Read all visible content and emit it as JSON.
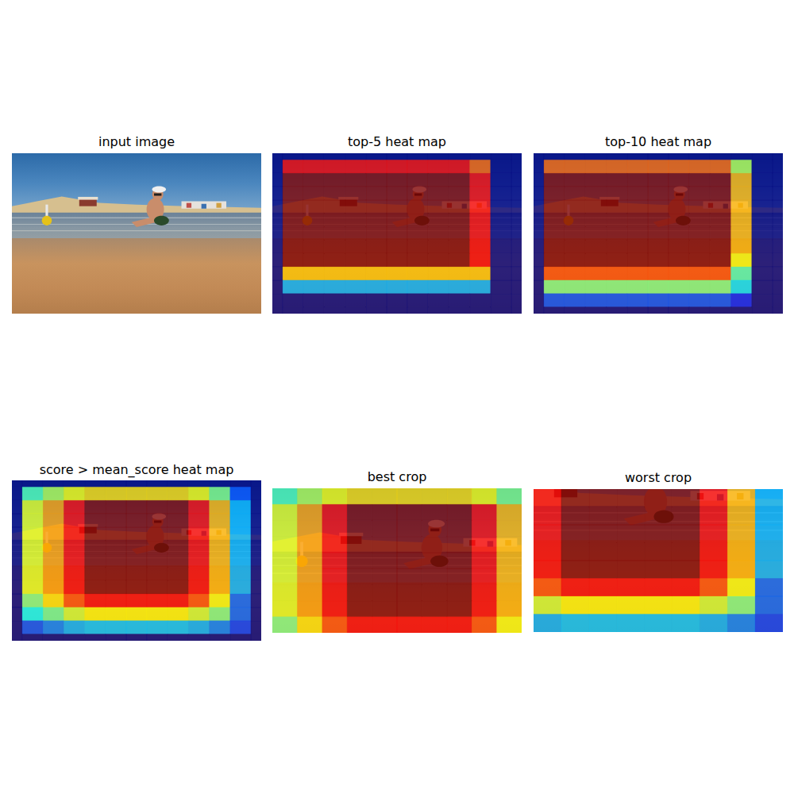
{
  "chart_data": [
    {
      "type": "image",
      "title": "input image",
      "tick_labels": false
    },
    {
      "type": "heatmap",
      "title": "top-5 heat map",
      "tick_labels": false,
      "xlim": [
        0,
        12
      ],
      "ylim": [
        0,
        12
      ],
      "color_range": [
        0,
        1
      ],
      "cells": [
        [
          0,
          0,
          0,
          0,
          0,
          0,
          0,
          0,
          0,
          0,
          0,
          0,
          0
        ],
        [
          0,
          0.88,
          0.88,
          0.88,
          0.88,
          0.88,
          0.88,
          0.88,
          0.88,
          0.88,
          0.78,
          0,
          0
        ],
        [
          0,
          1,
          1,
          1,
          1,
          1,
          1,
          1,
          1,
          1,
          0.88,
          0,
          0
        ],
        [
          0,
          1,
          1,
          1,
          1,
          1,
          1,
          1,
          1,
          1,
          0.88,
          0,
          0
        ],
        [
          0,
          1,
          1,
          1,
          1,
          1,
          1,
          1,
          1,
          1,
          0.88,
          0,
          0
        ],
        [
          0,
          1,
          1,
          1,
          1,
          1,
          1,
          1,
          1,
          1,
          0.88,
          0,
          0
        ],
        [
          0,
          1,
          1,
          1,
          1,
          1,
          1,
          1,
          1,
          1,
          0.88,
          0,
          0
        ],
        [
          0,
          1,
          1,
          1,
          1,
          1,
          1,
          1,
          1,
          1,
          0.88,
          0,
          0
        ],
        [
          0,
          1,
          1,
          1,
          1,
          1,
          1,
          1,
          1,
          1,
          0.88,
          0,
          0
        ],
        [
          0,
          0.68,
          0.68,
          0.68,
          0.68,
          0.68,
          0.68,
          0.68,
          0.68,
          0.68,
          0.68,
          0,
          0
        ],
        [
          0,
          0.3,
          0.3,
          0.3,
          0.3,
          0.3,
          0.3,
          0.3,
          0.3,
          0.3,
          0.3,
          0,
          0
        ],
        [
          0,
          0,
          0,
          0,
          0,
          0,
          0,
          0,
          0,
          0,
          0,
          0,
          0
        ],
        [
          0,
          0,
          0,
          0,
          0,
          0,
          0,
          0,
          0,
          0,
          0,
          0,
          0
        ]
      ]
    },
    {
      "type": "heatmap",
      "title": "top-10 heat map",
      "tick_labels": false,
      "xlim": [
        0,
        12
      ],
      "ylim": [
        0,
        12
      ],
      "color_range": [
        0,
        1
      ],
      "cells": [
        [
          0,
          0,
          0,
          0,
          0,
          0,
          0,
          0,
          0,
          0,
          0,
          0,
          0
        ],
        [
          0,
          0.78,
          0.78,
          0.78,
          0.78,
          0.78,
          0.78,
          0.78,
          0.78,
          0.78,
          0.55,
          0,
          0
        ],
        [
          0,
          1,
          1,
          1,
          1,
          1,
          1,
          1,
          1,
          1,
          0.7,
          0,
          0
        ],
        [
          0,
          1,
          1,
          1,
          1,
          1,
          1,
          1,
          1,
          1,
          0.7,
          0,
          0
        ],
        [
          0,
          1,
          1,
          1,
          1,
          1,
          1,
          1,
          1,
          1,
          0.7,
          0,
          0
        ],
        [
          0,
          1,
          1,
          1,
          1,
          1,
          1,
          1,
          1,
          1,
          0.7,
          0,
          0
        ],
        [
          0,
          1,
          1,
          1,
          1,
          1,
          1,
          1,
          1,
          1,
          0.7,
          0,
          0
        ],
        [
          0,
          1,
          1,
          1,
          1,
          1,
          1,
          1,
          1,
          1,
          0.7,
          0,
          0
        ],
        [
          0,
          1,
          1,
          1,
          1,
          1,
          1,
          1,
          1,
          1,
          0.62,
          0,
          0
        ],
        [
          0,
          0.8,
          0.8,
          0.8,
          0.8,
          0.8,
          0.8,
          0.8,
          0.8,
          0.8,
          0.45,
          0,
          0
        ],
        [
          0,
          0.5,
          0.5,
          0.5,
          0.5,
          0.5,
          0.5,
          0.5,
          0.5,
          0.5,
          0.35,
          0,
          0
        ],
        [
          0,
          0.2,
          0.2,
          0.2,
          0.2,
          0.2,
          0.2,
          0.2,
          0.2,
          0.2,
          0.15,
          0,
          0
        ],
        [
          0,
          0,
          0,
          0,
          0,
          0,
          0,
          0,
          0,
          0,
          0,
          0,
          0
        ]
      ]
    },
    {
      "type": "heatmap",
      "title": "score > mean_score heat map",
      "tick_labels": false,
      "xlim": [
        0,
        12
      ],
      "ylim": [
        0,
        12
      ],
      "color_range": [
        0,
        1
      ],
      "cells": [
        [
          0,
          0,
          0,
          0,
          0,
          0,
          0,
          0,
          0,
          0,
          0,
          0,
          0
        ],
        [
          0,
          0.45,
          0.55,
          0.62,
          0.66,
          0.66,
          0.66,
          0.66,
          0.66,
          0.62,
          0.5,
          0.2,
          0
        ],
        [
          0,
          0.6,
          0.72,
          0.88,
          1,
          1,
          1,
          1,
          1,
          0.88,
          0.7,
          0.3,
          0
        ],
        [
          0,
          0.6,
          0.72,
          0.88,
          1,
          1,
          1,
          1,
          1,
          0.88,
          0.7,
          0.3,
          0
        ],
        [
          0,
          0.6,
          0.72,
          0.88,
          1,
          1,
          1,
          1,
          1,
          0.88,
          0.7,
          0.3,
          0
        ],
        [
          0,
          0.6,
          0.72,
          0.88,
          1,
          1,
          1,
          1,
          1,
          0.88,
          0.7,
          0.3,
          0
        ],
        [
          0,
          0.6,
          0.72,
          0.88,
          1,
          1,
          1,
          1,
          1,
          0.88,
          0.7,
          0.3,
          0
        ],
        [
          0,
          0.6,
          0.72,
          0.88,
          1,
          1,
          1,
          1,
          1,
          0.88,
          0.7,
          0.3,
          0
        ],
        [
          0,
          0.6,
          0.72,
          0.88,
          1,
          1,
          1,
          1,
          1,
          0.88,
          0.7,
          0.3,
          0
        ],
        [
          0,
          0.5,
          0.65,
          0.8,
          0.88,
          0.88,
          0.88,
          0.88,
          0.88,
          0.8,
          0.62,
          0.22,
          0
        ],
        [
          0,
          0.38,
          0.48,
          0.58,
          0.63,
          0.63,
          0.63,
          0.63,
          0.63,
          0.58,
          0.5,
          0.22,
          0
        ],
        [
          0,
          0.2,
          0.25,
          0.3,
          0.32,
          0.32,
          0.32,
          0.32,
          0.32,
          0.3,
          0.25,
          0.18,
          0
        ],
        [
          0,
          0,
          0,
          0,
          0,
          0,
          0,
          0,
          0,
          0,
          0,
          0,
          0
        ]
      ]
    },
    {
      "type": "heatmap",
      "title": "best crop",
      "tick_labels": false,
      "xlim": [
        -0.5,
        9.5
      ],
      "ylim": [
        -0.5,
        8.5
      ],
      "color_range": [
        0,
        1
      ],
      "cells": [
        [
          0.45,
          0.55,
          0.62,
          0.66,
          0.66,
          0.66,
          0.66,
          0.66,
          0.62,
          0.5
        ],
        [
          0.6,
          0.72,
          0.88,
          1,
          1,
          1,
          1,
          1,
          0.88,
          0.7
        ],
        [
          0.6,
          0.72,
          0.88,
          1,
          1,
          1,
          1,
          1,
          0.88,
          0.7
        ],
        [
          0.6,
          0.72,
          0.88,
          1,
          1,
          1,
          1,
          1,
          0.88,
          0.7
        ],
        [
          0.6,
          0.72,
          0.88,
          1,
          1,
          1,
          1,
          1,
          0.88,
          0.7
        ],
        [
          0.6,
          0.72,
          0.88,
          1,
          1,
          1,
          1,
          1,
          0.88,
          0.7
        ],
        [
          0.6,
          0.72,
          0.88,
          1,
          1,
          1,
          1,
          1,
          0.88,
          0.7
        ],
        [
          0.6,
          0.72,
          0.88,
          1,
          1,
          1,
          1,
          1,
          0.88,
          0.7
        ],
        [
          0.5,
          0.65,
          0.8,
          0.88,
          0.88,
          0.88,
          0.88,
          0.88,
          0.8,
          0.62
        ]
      ]
    },
    {
      "type": "heatmap",
      "title": "worst crop",
      "tick_labels": false,
      "xlim": [
        -0.5,
        8.5
      ],
      "ylim": [
        -0.5,
        7.5
      ],
      "color_range": [
        0,
        1
      ],
      "cells": [
        [
          0.88,
          1,
          1,
          1,
          1,
          1,
          0.88,
          0.7,
          0.3
        ],
        [
          0.88,
          1,
          1,
          1,
          1,
          1,
          0.88,
          0.7,
          0.3
        ],
        [
          0.88,
          1,
          1,
          1,
          1,
          1,
          0.88,
          0.7,
          0.3
        ],
        [
          0.88,
          1,
          1,
          1,
          1,
          1,
          0.88,
          0.7,
          0.3
        ],
        [
          0.88,
          1,
          1,
          1,
          1,
          1,
          0.88,
          0.7,
          0.3
        ],
        [
          0.8,
          0.88,
          0.88,
          0.88,
          0.88,
          0.88,
          0.8,
          0.62,
          0.22
        ],
        [
          0.58,
          0.63,
          0.63,
          0.63,
          0.63,
          0.63,
          0.58,
          0.5,
          0.22
        ],
        [
          0.3,
          0.32,
          0.32,
          0.32,
          0.32,
          0.32,
          0.3,
          0.25,
          0.18
        ]
      ]
    }
  ]
}
